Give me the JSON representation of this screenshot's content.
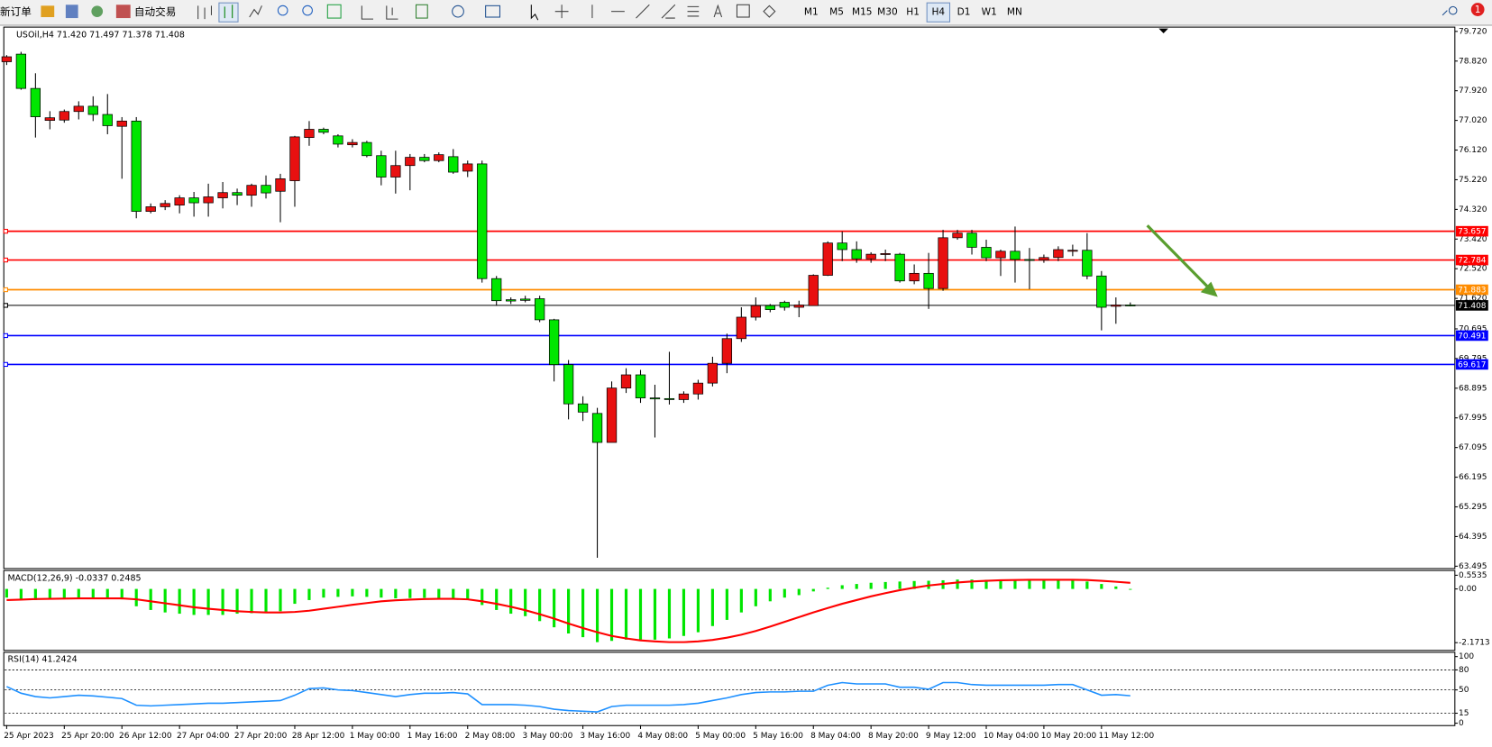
{
  "toolbar": {
    "new_order": "新订单",
    "auto_trading": "自动交易",
    "timeframes": [
      "M1",
      "M5",
      "M15",
      "M30",
      "H1",
      "H4",
      "D1",
      "W1",
      "MN"
    ],
    "active_timeframe": "H4",
    "notifications": "1"
  },
  "chart_data": [
    {
      "type": "candlestick",
      "title": "USOil,H4  71.420 71.497 71.378 71.408",
      "up_color": "#e81010",
      "down_color": "#00e600",
      "categories": [
        "25 Apr 2023",
        null,
        null,
        null,
        "25 Apr 20:00",
        null,
        null,
        null,
        "26 Apr 12:00",
        null,
        null,
        null,
        "27 Apr 04:00",
        null,
        null,
        null,
        "27 Apr 20:00",
        null,
        null,
        null,
        "28 Apr 12:00",
        null,
        null,
        null,
        "1 May 00:00",
        null,
        null,
        null,
        "1 May 16:00",
        null,
        null,
        null,
        "2 May 08:00",
        null,
        null,
        null,
        "3 May 00:00",
        null,
        null,
        null,
        "3 May 16:00",
        null,
        null,
        null,
        "4 May 08:00",
        null,
        null,
        null,
        "5 May 00:00",
        null,
        null,
        null,
        "5 May 16:00",
        null,
        null,
        null,
        "8 May 04:00",
        null,
        null,
        null,
        "8 May 20:00",
        null,
        null,
        null,
        "9 May 12:00",
        null,
        null,
        null,
        "10 May 04:00",
        null,
        null,
        null,
        "10 May 20:00",
        null,
        null,
        null,
        "11 May 12:00",
        null,
        null
      ],
      "open": [
        78.8,
        79.03,
        77.99,
        77.02,
        77.03,
        77.29,
        77.45,
        77.2,
        76.84,
        77.0,
        74.26,
        74.4,
        74.45,
        74.67,
        74.52,
        74.67,
        74.83,
        74.75,
        75.05,
        74.87,
        75.19,
        76.5,
        76.75,
        76.55,
        76.28,
        76.35,
        75.95,
        75.3,
        75.65,
        75.9,
        75.8,
        75.92,
        75.48,
        75.7,
        72.22,
        71.58,
        71.6,
        71.61,
        70.97,
        69.61,
        68.42,
        68.13,
        67.25,
        68.9,
        69.3,
        68.6,
        68.58,
        68.55,
        68.72,
        69.05,
        69.65,
        70.4,
        71.05,
        71.4,
        71.5,
        71.35,
        71.4,
        72.32,
        73.3,
        73.1,
        72.82,
        72.95,
        72.96,
        72.15,
        72.38,
        71.92,
        73.46,
        73.6,
        73.17,
        72.85,
        73.05,
        72.8,
        72.78,
        72.86,
        73.05,
        73.08,
        72.3,
        71.38,
        71.42
      ],
      "high": [
        79.0,
        79.1,
        78.45,
        77.3,
        77.35,
        77.6,
        77.75,
        77.82,
        77.12,
        77.12,
        74.5,
        74.6,
        74.75,
        74.85,
        75.1,
        75.15,
        74.95,
        75.1,
        75.35,
        75.4,
        76.55,
        77.0,
        76.8,
        76.6,
        76.45,
        76.4,
        76.1,
        76.1,
        76.0,
        76.0,
        76.05,
        76.15,
        75.8,
        75.8,
        72.3,
        71.65,
        71.7,
        71.7,
        71.0,
        69.75,
        68.65,
        68.3,
        69.1,
        69.5,
        69.45,
        69.0,
        70.0,
        68.8,
        69.15,
        69.85,
        70.55,
        71.35,
        71.65,
        71.45,
        71.55,
        71.55,
        72.35,
        73.35,
        73.65,
        73.35,
        73.02,
        73.1,
        73.0,
        72.65,
        73.0,
        73.7,
        73.7,
        73.7,
        73.4,
        73.1,
        73.8,
        73.15,
        72.95,
        73.2,
        73.25,
        73.6,
        72.45,
        71.65,
        71.497
      ],
      "low": [
        78.7,
        77.95,
        76.5,
        76.75,
        76.95,
        77.05,
        77.0,
        76.6,
        75.25,
        74.05,
        74.2,
        74.3,
        74.2,
        74.1,
        74.1,
        74.35,
        74.45,
        74.4,
        74.65,
        73.93,
        74.4,
        76.25,
        76.6,
        76.2,
        76.2,
        75.9,
        75.05,
        74.8,
        74.9,
        75.75,
        75.75,
        75.4,
        75.3,
        72.1,
        71.4,
        71.45,
        71.5,
        70.9,
        69.1,
        67.95,
        67.9,
        63.75,
        67.25,
        68.75,
        68.45,
        67.4,
        68.4,
        68.45,
        68.55,
        68.95,
        69.35,
        70.3,
        70.95,
        71.2,
        71.25,
        71.05,
        71.4,
        72.3,
        72.75,
        72.7,
        72.7,
        72.75,
        72.1,
        72.05,
        71.3,
        71.85,
        73.4,
        72.95,
        72.75,
        72.3,
        72.1,
        71.9,
        72.7,
        72.75,
        72.9,
        72.2,
        70.65,
        70.85,
        71.378
      ],
      "close": [
        78.95,
        77.99,
        77.13,
        77.1,
        77.29,
        77.45,
        77.2,
        76.86,
        77.0,
        74.26,
        74.4,
        74.5,
        74.67,
        74.52,
        74.7,
        74.83,
        74.75,
        75.05,
        74.82,
        75.25,
        76.52,
        76.75,
        76.66,
        76.3,
        76.35,
        75.95,
        75.3,
        75.65,
        75.9,
        75.8,
        75.98,
        75.45,
        75.7,
        72.22,
        71.55,
        71.54,
        71.56,
        70.97,
        69.61,
        68.42,
        68.17,
        67.25,
        68.9,
        69.3,
        68.6,
        68.57,
        68.55,
        68.72,
        69.05,
        69.65,
        70.4,
        71.05,
        71.4,
        71.28,
        71.35,
        71.42,
        72.32,
        73.3,
        73.1,
        72.82,
        72.96,
        72.98,
        72.15,
        72.38,
        71.92,
        73.46,
        73.6,
        73.17,
        72.85,
        73.05,
        72.8,
        72.78,
        72.86,
        73.1,
        73.08,
        72.3,
        71.35,
        71.42,
        71.408
      ],
      "ylim": [
        63.495,
        79.72
      ],
      "yticks": [
        {
          "value": 79.72,
          "label": "79.720"
        },
        {
          "value": 78.82,
          "label": "78.820"
        },
        {
          "value": 77.92,
          "label": "77.920"
        },
        {
          "value": 77.02,
          "label": "77.020"
        },
        {
          "value": 76.12,
          "label": "76.120"
        },
        {
          "value": 75.22,
          "label": "75.220"
        },
        {
          "value": 74.32,
          "label": "74.320"
        },
        {
          "value": 73.42,
          "label": "73.420"
        },
        {
          "value": 72.52,
          "label": "72.520"
        },
        {
          "value": 71.62,
          "label": "71.620"
        },
        70.695,
        69.795,
        68.895,
        67.995,
        67.095,
        66.195,
        65.295,
        64.395,
        63.495
      ],
      "levels": [
        {
          "value": 73.657,
          "color": "#ff0000"
        },
        {
          "value": 72.784,
          "color": "#ff0000"
        },
        {
          "value": 71.883,
          "color": "#ff8c00"
        },
        {
          "value": 71.408,
          "color": "#000000"
        },
        {
          "value": 70.491,
          "color": "#0000ff"
        },
        {
          "value": 69.617,
          "color": "#0000ff"
        }
      ]
    },
    {
      "type": "macd",
      "title": "MACD(12,26,9) -0.0337 0.2485",
      "color": "#00e600",
      "signal_color": "#ff0000",
      "values": [
        -0.35,
        -0.4,
        -0.45,
        -0.42,
        -0.4,
        -0.38,
        -0.36,
        -0.38,
        -0.42,
        -0.7,
        -0.85,
        -0.95,
        -1.0,
        -1.05,
        -1.05,
        -1.05,
        -1.0,
        -0.98,
        -0.95,
        -0.9,
        -0.6,
        -0.45,
        -0.35,
        -0.32,
        -0.3,
        -0.32,
        -0.35,
        -0.38,
        -0.37,
        -0.36,
        -0.38,
        -0.38,
        -0.4,
        -0.65,
        -0.85,
        -1.0,
        -1.1,
        -1.3,
        -1.55,
        -1.8,
        -1.95,
        -2.15,
        -2.1,
        -2.05,
        -2.05,
        -2.05,
        -2.0,
        -1.9,
        -1.75,
        -1.5,
        -1.25,
        -0.95,
        -0.7,
        -0.5,
        -0.35,
        -0.25,
        -0.1,
        0.05,
        0.15,
        0.2,
        0.25,
        0.28,
        0.3,
        0.32,
        0.33,
        0.35,
        0.38,
        0.38,
        0.37,
        0.36,
        0.36,
        0.35,
        0.36,
        0.37,
        0.35,
        0.3,
        0.2,
        0.1,
        -0.0337
      ],
      "signal": [
        -0.45,
        -0.43,
        -0.41,
        -0.4,
        -0.39,
        -0.38,
        -0.38,
        -0.38,
        -0.38,
        -0.42,
        -0.5,
        -0.58,
        -0.66,
        -0.74,
        -0.8,
        -0.85,
        -0.9,
        -0.93,
        -0.95,
        -0.95,
        -0.93,
        -0.88,
        -0.8,
        -0.72,
        -0.64,
        -0.57,
        -0.5,
        -0.46,
        -0.43,
        -0.41,
        -0.4,
        -0.4,
        -0.42,
        -0.5,
        -0.6,
        -0.72,
        -0.86,
        -1.02,
        -1.2,
        -1.4,
        -1.58,
        -1.75,
        -1.9,
        -2.0,
        -2.08,
        -2.12,
        -2.15,
        -2.15,
        -2.12,
        -2.06,
        -1.97,
        -1.85,
        -1.7,
        -1.52,
        -1.33,
        -1.14,
        -0.95,
        -0.77,
        -0.6,
        -0.45,
        -0.3,
        -0.17,
        -0.05,
        0.05,
        0.14,
        0.2,
        0.26,
        0.3,
        0.33,
        0.35,
        0.36,
        0.37,
        0.37,
        0.37,
        0.37,
        0.36,
        0.33,
        0.29,
        0.2485
      ],
      "ylim": [
        -2.35,
        0.65
      ],
      "yticks": [
        0.5535,
        {
          "value": 0,
          "label": "0.00"
        },
        -2.1713
      ]
    },
    {
      "type": "line",
      "title": "RSI(14) 41.2424",
      "color": "#1e90ff",
      "values": [
        55,
        45,
        40,
        38,
        40,
        42,
        41,
        39,
        37,
        27,
        26,
        27,
        28,
        29,
        30,
        30,
        31,
        32,
        33,
        34,
        42,
        52,
        53,
        50,
        49,
        46,
        43,
        40,
        43,
        45,
        45,
        46,
        44,
        28,
        28,
        28,
        27,
        25,
        21,
        19,
        18,
        17,
        25,
        27,
        27,
        27,
        27,
        28,
        30,
        34,
        38,
        43,
        46,
        47,
        47,
        48,
        48,
        57,
        61,
        59,
        59,
        59,
        54,
        54,
        51,
        61,
        61,
        58,
        57,
        57,
        57,
        57,
        57,
        58,
        58,
        50,
        42,
        43,
        41.2424
      ],
      "ylim": [
        0,
        100
      ],
      "yticks": [
        100,
        80,
        50,
        15,
        0
      ]
    }
  ]
}
